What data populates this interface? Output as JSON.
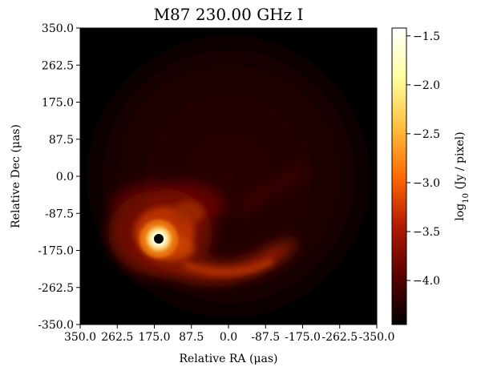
{
  "chart_data": {
    "type": "heatmap",
    "title": "M87 230.00 GHz I",
    "xlabel": "Relative RA (μas)",
    "ylabel": "Relative Dec (μas)",
    "colorbar_label": "log10 (Jy / pixel)",
    "colorbar_label_base": "log",
    "colorbar_label_sub": "10",
    "colorbar_label_rest": " (Jy / pixel)",
    "xlim": [
      350.0,
      -350.0
    ],
    "ylim": [
      -350.0,
      350.0
    ],
    "x_ticks": [
      350.0,
      262.5,
      175.0,
      87.5,
      0.0,
      -87.5,
      -175.0,
      -262.5,
      -350.0
    ],
    "x_tick_labels": [
      "350.0",
      "262.5",
      "175.0",
      "87.5",
      "0.0",
      "-87.5",
      "-175.0",
      "-262.5",
      "-350.0"
    ],
    "y_ticks": [
      350.0,
      262.5,
      175.0,
      87.5,
      0.0,
      -87.5,
      -175.0,
      -262.5,
      -350.0
    ],
    "y_tick_labels": [
      "350.0",
      "262.5",
      "175.0",
      "87.5",
      "0.0",
      "-87.5",
      "-175.0",
      "-262.5",
      "-350.0"
    ],
    "colorbar_range": [
      -4.45,
      -1.42
    ],
    "colorbar_ticks": [
      -1.5,
      -2.0,
      -2.5,
      -3.0,
      -3.5,
      -4.0
    ],
    "colorbar_tick_labels": [
      "−1.5",
      "−2.0",
      "−2.5",
      "−3.0",
      "−3.5",
      "−4.0"
    ],
    "colormap": "afmhot",
    "features": [
      {
        "name": "compact ring",
        "x": 155,
        "y": -148,
        "peak_log10": -1.5
      },
      {
        "name": "spiral extension",
        "x": -80,
        "y": -230
      }
    ]
  },
  "colors": {
    "background": "#000000",
    "cmap_stops": [
      "#000000",
      "#5a0000",
      "#b31a00",
      "#ff6a00",
      "#ffbf40",
      "#ffff9f",
      "#ffffff"
    ]
  }
}
